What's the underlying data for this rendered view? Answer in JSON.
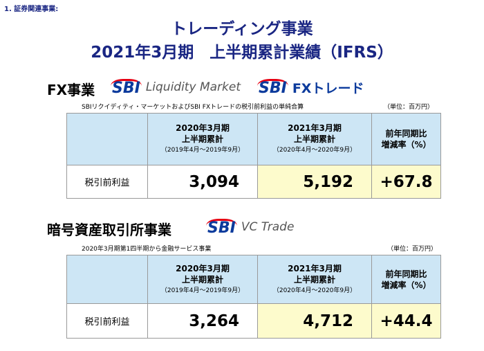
{
  "header": {
    "label": "1. 証券関連事業:",
    "title": [
      "トレーディング事業",
      "2021年3月期　上半期累計業績（IFRS）"
    ]
  },
  "sections": [
    {
      "heading": "FX事業",
      "logos": [
        {
          "mark": "SBI",
          "text": "Liquidity Market"
        },
        {
          "mark": "SBI",
          "text": "FXトレード"
        }
      ],
      "note": "SBIリクイディティ・マーケットおよびSBI FXトレードの税引前利益の単純合算",
      "unit": "（単位：百万円）",
      "table": {
        "columns": [
          [
            "2020年3月期",
            "上半期累計",
            "（2019年4月～2019年9月）"
          ],
          [
            "2021年3月期",
            "上半期累計",
            "（2020年4月～2020年9月）"
          ],
          [
            "前年同期比",
            "増減率（%）"
          ]
        ],
        "rows": [
          {
            "label": "税引前利益",
            "cells": [
              "3,094",
              "5,192",
              "+67.8"
            ]
          }
        ]
      }
    },
    {
      "heading": "暗号資産取引所事業",
      "logos": [
        {
          "mark": "SBI",
          "text": "VC Trade"
        }
      ],
      "note": "2020年3月期第1四半期から金融サービス事業",
      "unit": "（単位：百万円）",
      "table": {
        "columns": [
          [
            "2020年3月期",
            "上半期累計",
            "（2019年4月～2019年9月）"
          ],
          [
            "2021年3月期",
            "上半期累計",
            "（2020年4月～2020年9月）"
          ],
          [
            "前年同期比",
            "増減率（%）"
          ]
        ],
        "rows": [
          {
            "label": "税引前利益",
            "cells": [
              "3,264",
              "4,712",
              "+44.4"
            ]
          }
        ]
      }
    }
  ]
}
